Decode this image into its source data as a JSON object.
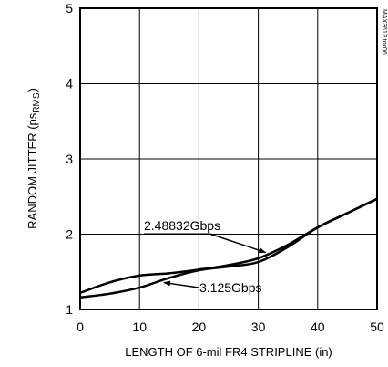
{
  "chart_data": {
    "type": "line",
    "title": "",
    "xlabel": "LENGTH OF 6-mil FR4 STRIPLINE (in)",
    "ylabel": {
      "main": "RANDOM JITTER (ps",
      "sub": "RMS",
      "close": ")"
    },
    "xlim": [
      0,
      50
    ],
    "ylim": [
      1,
      5
    ],
    "xticks": [
      "0",
      "10",
      "20",
      "30",
      "40",
      "50"
    ],
    "yticks": [
      "1",
      "2",
      "3",
      "4",
      "5"
    ],
    "grid": true,
    "figure_id": "MAX3613 toc06",
    "series": [
      {
        "name": "2.48832Gbps",
        "x": [
          0,
          5,
          10,
          15,
          20,
          25,
          30,
          35,
          40,
          45,
          50
        ],
        "y": [
          1.22,
          1.36,
          1.45,
          1.48,
          1.53,
          1.59,
          1.68,
          1.86,
          2.09,
          2.28,
          2.47
        ]
      },
      {
        "name": "3.125Gbps",
        "x": [
          0,
          5,
          10,
          15,
          20,
          25,
          30,
          35,
          40,
          45,
          50
        ],
        "y": [
          1.16,
          1.21,
          1.29,
          1.42,
          1.52,
          1.57,
          1.63,
          1.83,
          2.09,
          2.28,
          2.47
        ]
      }
    ],
    "annotations": [
      {
        "label": "2.48832Gbps",
        "series": 0,
        "x_at": 31.5
      },
      {
        "label": "3.125Gbps",
        "series": 1,
        "x_at": 13.5
      }
    ]
  }
}
